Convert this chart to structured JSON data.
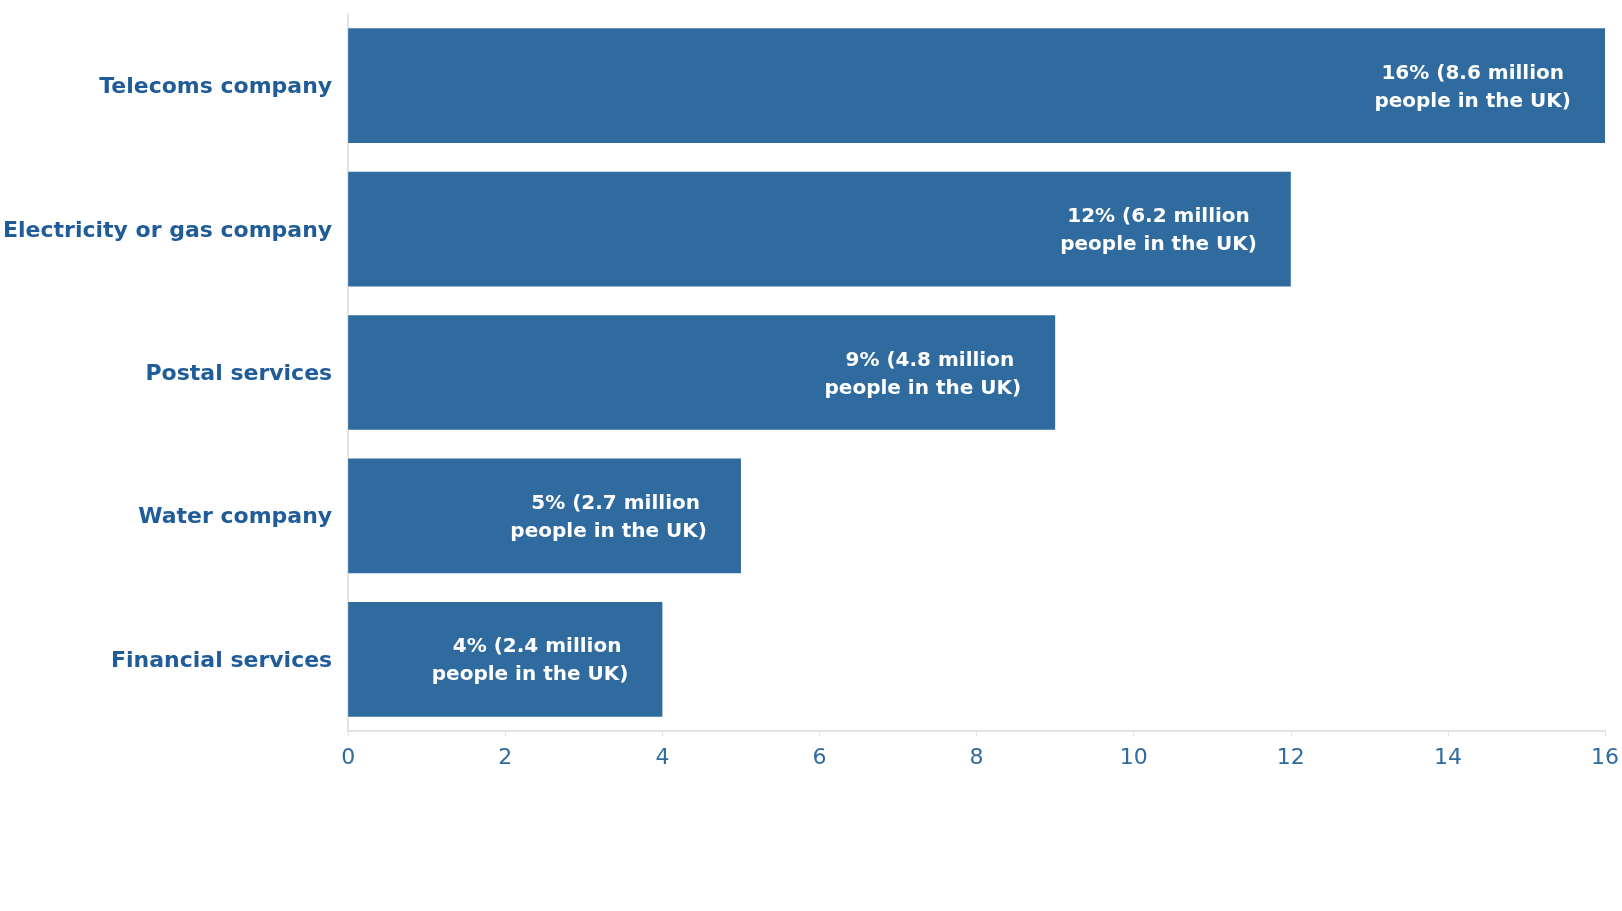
{
  "chart_data": {
    "type": "bar",
    "orientation": "horizontal",
    "categories": [
      "Telecoms company",
      "Electricity or gas company",
      "Postal services",
      "Water company",
      "Financial services"
    ],
    "values": [
      16,
      12,
      9,
      5,
      4
    ],
    "value_labels": [
      "16% (8.6 million people in the UK)",
      "12% (6.2 million people in the UK)",
      "9% (4.8 million people in the UK)",
      "5% (2.7 million people in the UK)",
      "4% (2.4 million people in the UK)"
    ],
    "color": "#2f6b9e",
    "xlim": [
      0,
      16
    ],
    "xticks": [
      0,
      2,
      4,
      6,
      8,
      10,
      12,
      14,
      16
    ],
    "grid": false
  }
}
